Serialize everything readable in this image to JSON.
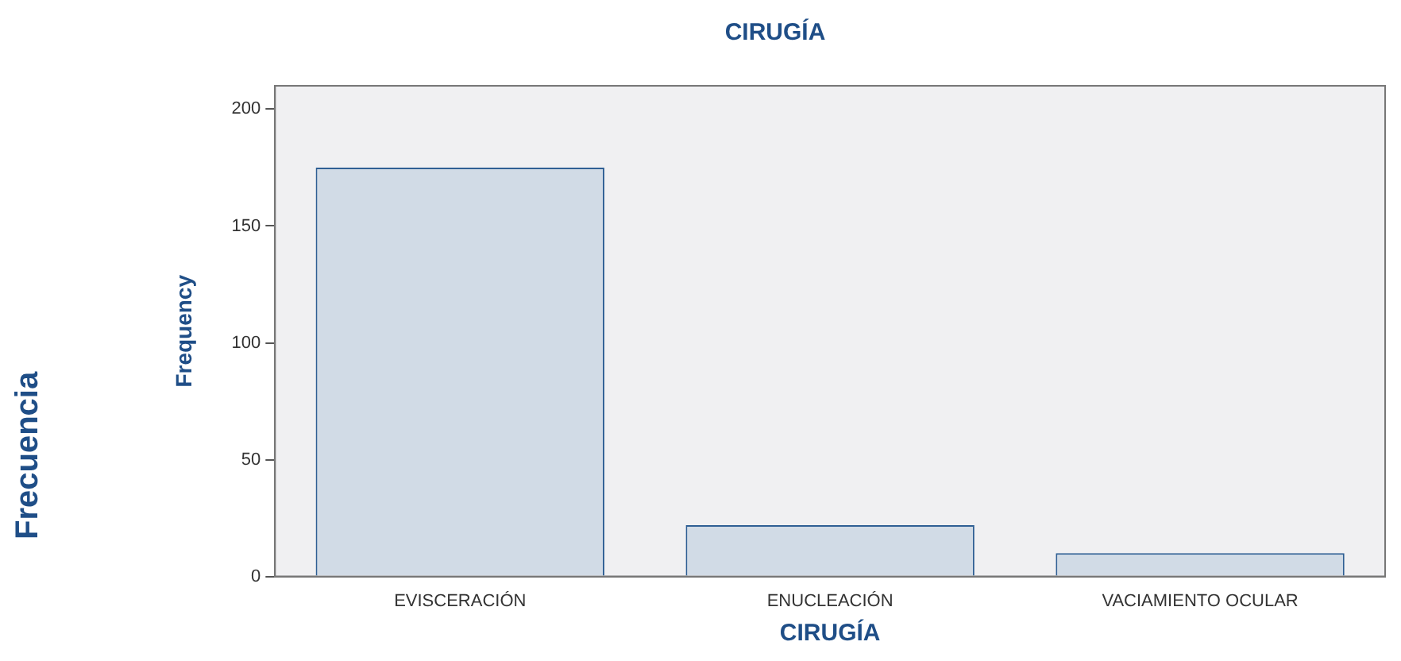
{
  "chart_data": {
    "type": "bar",
    "title": "CIRUGÍA",
    "xlabel": "CIRUGÍA",
    "ylabel": "Frequency",
    "annotations": [
      "Frecuencia"
    ],
    "categories": [
      "EVISCERACIÓN",
      "ENUCLEACIÓN",
      "VACIAMIENTO OCULAR"
    ],
    "values": [
      175,
      22,
      10
    ],
    "color": "#d1dbe6",
    "ylim": [
      0,
      210
    ],
    "yticks": [
      0,
      50,
      100,
      150,
      200
    ],
    "grid": false,
    "legend": false
  }
}
